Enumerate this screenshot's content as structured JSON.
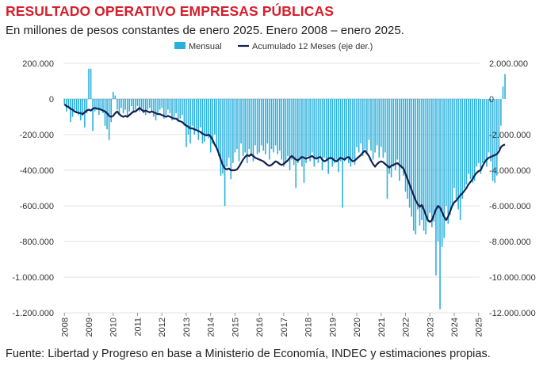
{
  "header": {
    "title": "RESULTADO OPERATIVO EMPRESAS PÚBLICAS",
    "subtitle": "En millones de pesos constantes de enero 2025. Enero 2008 – enero 2025."
  },
  "footer": {
    "source": "Fuente: Libertad y Progreso en base a Ministerio de Economía, INDEC y estimaciones propias."
  },
  "chart_data": {
    "type": "bar",
    "title": "RESULTADO OPERATIVO EMPRESAS PÚBLICAS",
    "subtitle": "En millones de pesos constantes de enero 2025. Enero 2008 – enero 2025.",
    "colors": {
      "bar": "#2bb0dd",
      "line": "#14204f"
    },
    "legend": {
      "position": "top-center",
      "bar_label": "Mensual",
      "line_label": "Acumulado 12 Meses (eje der.)"
    },
    "x_tick_labels": [
      "2008",
      "2009",
      "2010",
      "2011",
      "2012",
      "2013",
      "2014",
      "2015",
      "2016",
      "2017",
      "2018",
      "2019",
      "2020",
      "2021",
      "2022",
      "2023",
      "2024",
      "2025"
    ],
    "y_left": {
      "ylim": [
        -1200000,
        200000
      ],
      "ticks": [
        200000,
        0,
        -200000,
        -400000,
        -600000,
        -800000,
        -1000000,
        -1200000
      ],
      "tick_labels": [
        "200.000",
        "0",
        "-200.000",
        "-400.000",
        "-600.000",
        "-800.000",
        "-1.000.000",
        "-1.200.000"
      ]
    },
    "y_right": {
      "ylim": [
        -12000000,
        2000000
      ],
      "ticks": [
        2000000,
        0,
        -2000000,
        -4000000,
        -6000000,
        -8000000,
        -10000000,
        -12000000
      ],
      "tick_labels": [
        "2.000.000",
        "0",
        "-2.000.000",
        "-4.000.000",
        "-6.000.000",
        "-8.000.000",
        "-10.000.000",
        "-12.000.000"
      ]
    },
    "series": [
      {
        "name": "Mensual",
        "type": "bar",
        "axis": "left",
        "start": "2008-01",
        "frequency": "monthly",
        "values": [
          -30000,
          -70000,
          -50000,
          -130000,
          -100000,
          -60000,
          -80000,
          -90000,
          -120000,
          -95000,
          -160000,
          -80000,
          170000,
          170000,
          -180000,
          -70000,
          -60000,
          -90000,
          -60000,
          -80000,
          -150000,
          -170000,
          -230000,
          -130000,
          40000,
          20000,
          -60000,
          -90000,
          -50000,
          -80000,
          -60000,
          -100000,
          -70000,
          -40000,
          -80000,
          -60000,
          -40000,
          -70000,
          -50000,
          -80000,
          -90000,
          -60000,
          -50000,
          -70000,
          -100000,
          -120000,
          -80000,
          -60000,
          -50000,
          -110000,
          -90000,
          -60000,
          -80000,
          -120000,
          -100000,
          -80000,
          -130000,
          -110000,
          -90000,
          -150000,
          -270000,
          -200000,
          -250000,
          -150000,
          -200000,
          -180000,
          -230000,
          -160000,
          -250000,
          -240000,
          -200000,
          -220000,
          -300000,
          -250000,
          -200000,
          -280000,
          -320000,
          -430000,
          -420000,
          -600000,
          -380000,
          -330000,
          -450000,
          -360000,
          -300000,
          -280000,
          -350000,
          -250000,
          -320000,
          -300000,
          -360000,
          -280000,
          -320000,
          -350000,
          -260000,
          -310000,
          -300000,
          -260000,
          -290000,
          -310000,
          -250000,
          -340000,
          -280000,
          -300000,
          -260000,
          -310000,
          -290000,
          -340000,
          -380000,
          -350000,
          -320000,
          -400000,
          -340000,
          -370000,
          -500000,
          -360000,
          -340000,
          -380000,
          -470000,
          -360000,
          -320000,
          -350000,
          -300000,
          -380000,
          -330000,
          -360000,
          -320000,
          -400000,
          -330000,
          -350000,
          -420000,
          -340000,
          -380000,
          -360000,
          -340000,
          -410000,
          -350000,
          -610000,
          -350000,
          -330000,
          -360000,
          -380000,
          -340000,
          -370000,
          -270000,
          -300000,
          -250000,
          -320000,
          -280000,
          -310000,
          -230000,
          -290000,
          -340000,
          -300000,
          -260000,
          -330000,
          -270000,
          -330000,
          -300000,
          -560000,
          -420000,
          -440000,
          -380000,
          -400000,
          -340000,
          -460000,
          -390000,
          -430000,
          -520000,
          -560000,
          -610000,
          -660000,
          -740000,
          -760000,
          -620000,
          -710000,
          -680000,
          -740000,
          -760000,
          -690000,
          -640000,
          -720000,
          -690000,
          -990000,
          -800000,
          -1180000,
          -830000,
          -780000,
          -600000,
          -700000,
          -650000,
          -600000,
          -500000,
          -560000,
          -620000,
          -680000,
          -560000,
          -500000,
          -480000,
          -420000,
          -450000,
          -470000,
          -460000,
          -380000,
          -360000,
          -420000,
          -360000,
          -360000,
          -380000,
          -300000,
          -350000,
          -460000,
          -470000,
          -430000,
          -280000,
          -150000,
          70000,
          140000
        ]
      },
      {
        "name": "Acumulado 12 Meses (eje der.)",
        "type": "line",
        "axis": "right",
        "start": "2008-01",
        "frequency": "monthly",
        "values": [
          -300000,
          -400000,
          -450000,
          -550000,
          -600000,
          -700000,
          -750000,
          -780000,
          -800000,
          -850000,
          -750000,
          -650000,
          -600000,
          -650000,
          -550000,
          -500000,
          -550000,
          -550000,
          -600000,
          -650000,
          -700000,
          -800000,
          -950000,
          -1000000,
          -950000,
          -800000,
          -700000,
          -850000,
          -950000,
          -1000000,
          -950000,
          -1000000,
          -900000,
          -800000,
          -700000,
          -700000,
          -600000,
          -500000,
          -600000,
          -700000,
          -650000,
          -700000,
          -750000,
          -700000,
          -750000,
          -800000,
          -850000,
          -850000,
          -900000,
          -950000,
          -1000000,
          -950000,
          -1000000,
          -1050000,
          -1100000,
          -1100000,
          -1200000,
          -1250000,
          -1300000,
          -1400000,
          -1500000,
          -1550000,
          -1650000,
          -1650000,
          -1700000,
          -1750000,
          -1800000,
          -1850000,
          -1950000,
          -2000000,
          -2050000,
          -2000000,
          -2100000,
          -2300000,
          -2550000,
          -2750000,
          -3050000,
          -3400000,
          -3700000,
          -3900000,
          -3950000,
          -3900000,
          -4000000,
          -4000000,
          -4000000,
          -3950000,
          -3800000,
          -3600000,
          -3400000,
          -3250000,
          -3150000,
          -3200000,
          -3100000,
          -3200000,
          -3300000,
          -3350000,
          -3400000,
          -3450000,
          -3500000,
          -3600000,
          -3700000,
          -3750000,
          -3700000,
          -3600000,
          -3500000,
          -3550000,
          -3650000,
          -3700000,
          -3650000,
          -3550000,
          -3450000,
          -3300000,
          -3200000,
          -3300000,
          -3400000,
          -3450000,
          -3350000,
          -3250000,
          -3300000,
          -3350000,
          -3300000,
          -3250000,
          -3200000,
          -3300000,
          -3350000,
          -3300000,
          -3250000,
          -3400000,
          -3500000,
          -3450000,
          -3350000,
          -3300000,
          -3350000,
          -3450000,
          -3500000,
          -3400000,
          -3300000,
          -3350000,
          -3400000,
          -3300000,
          -3250000,
          -3400000,
          -3500000,
          -3450000,
          -3350000,
          -3250000,
          -3150000,
          -3000000,
          -2900000,
          -3050000,
          -3200000,
          -3450000,
          -3650000,
          -3800000,
          -3650000,
          -3550000,
          -3500000,
          -3550000,
          -3650000,
          -3750000,
          -3850000,
          -3750000,
          -3700000,
          -3650000,
          -3600000,
          -3700000,
          -3800000,
          -3900000,
          -4200000,
          -4500000,
          -4800000,
          -5100000,
          -5400000,
          -5700000,
          -5900000,
          -6050000,
          -5950000,
          -6200000,
          -6500000,
          -6800000,
          -6900000,
          -6800000,
          -6500000,
          -6200000,
          -6000000,
          -6100000,
          -6350000,
          -6600000,
          -6800000,
          -6600000,
          -6300000,
          -6000000,
          -5800000,
          -5700000,
          -5550000,
          -5400000,
          -5300000,
          -5150000,
          -5000000,
          -4800000,
          -4650000,
          -4500000,
          -4300000,
          -4150000,
          -4050000,
          -4000000,
          -3750000,
          -3550000,
          -3400000,
          -3300000,
          -3250000,
          -3200000,
          -3150000,
          -3100000,
          -2950000,
          -2700000,
          -2600000,
          -2550000
        ]
      }
    ]
  }
}
